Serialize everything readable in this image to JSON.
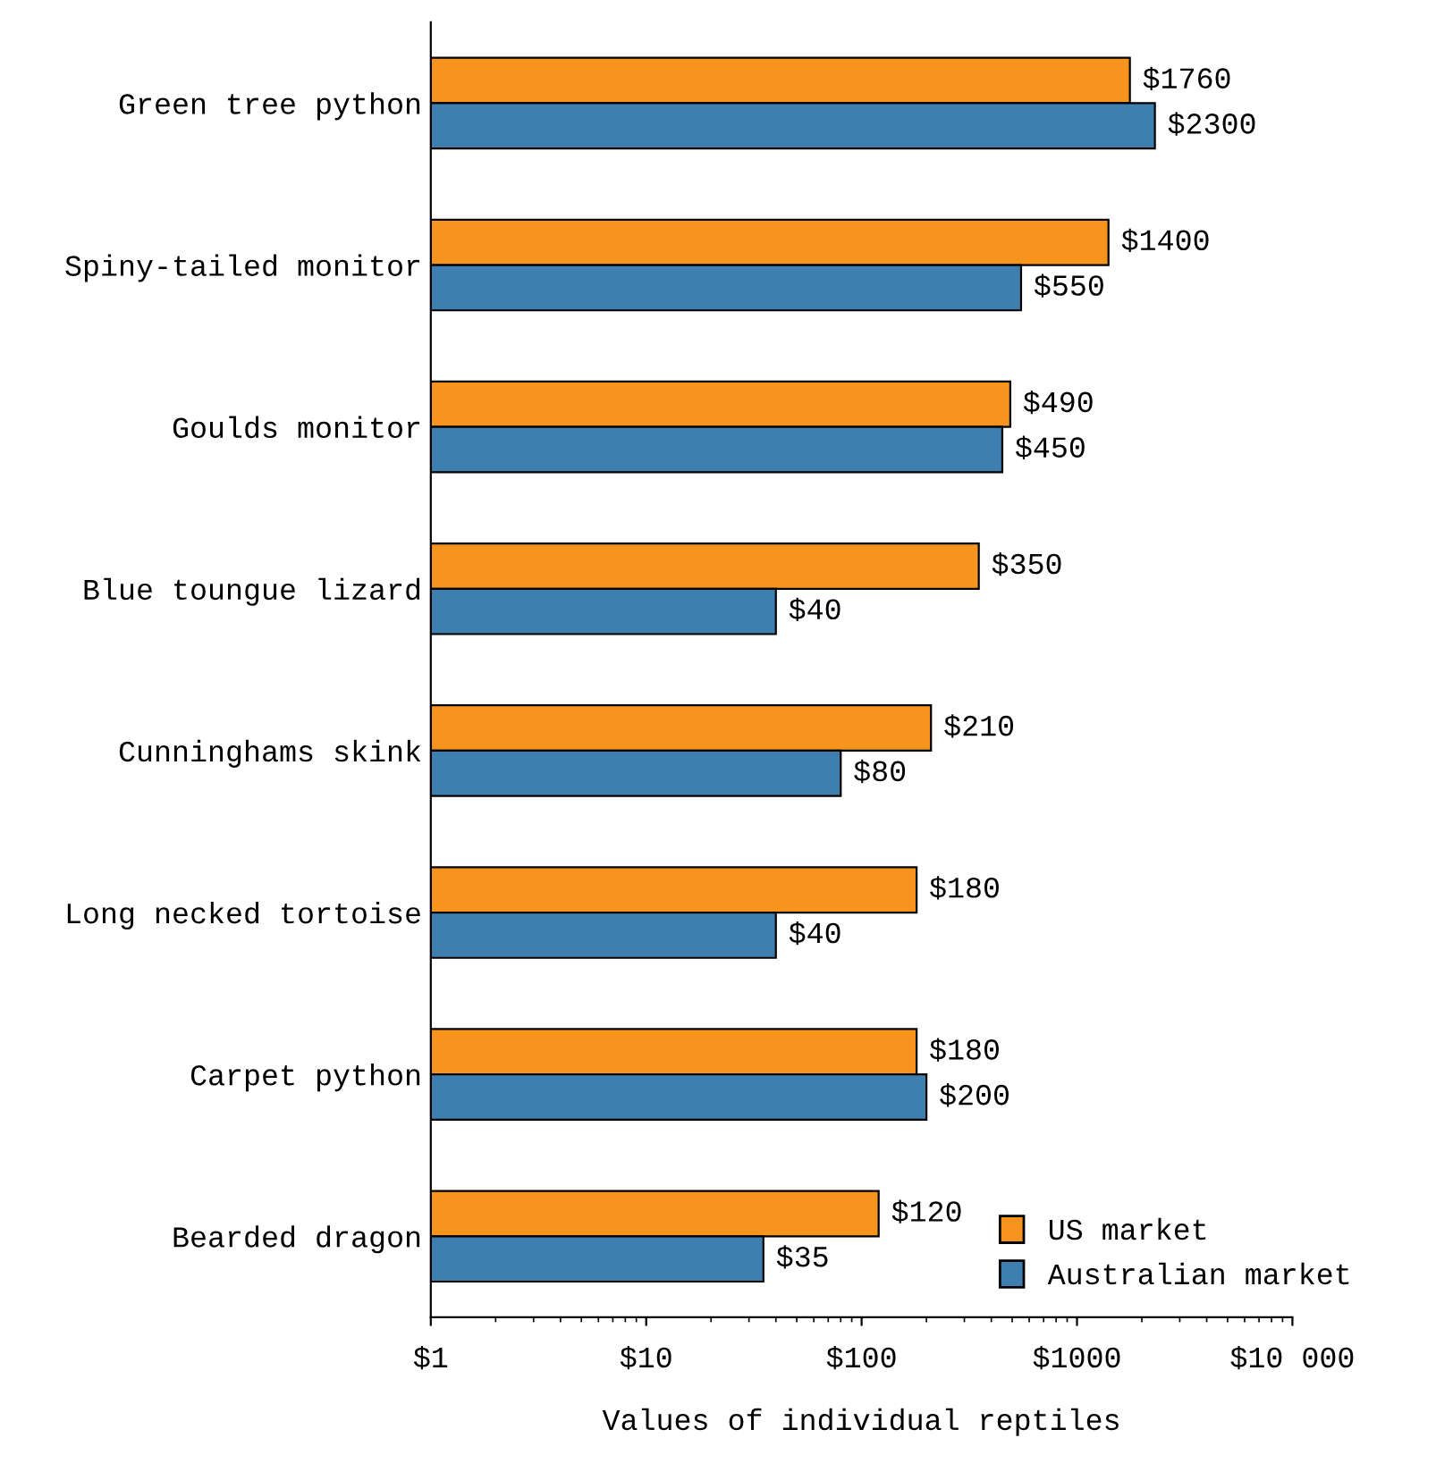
{
  "chart_data": {
    "type": "bar",
    "orientation": "horizontal",
    "xlabel": "Values of individual reptiles",
    "categories": [
      "Green tree python",
      "Spiny-tailed monitor",
      "Goulds monitor",
      "Blue toungue lizard",
      "Cunninghams skink",
      "Long necked tortoise",
      "Carpet python",
      "Bearded dragon"
    ],
    "series": [
      {
        "name": "US market",
        "color": "#f7941d",
        "values": [
          1760,
          1400,
          490,
          350,
          210,
          180,
          180,
          120
        ],
        "value_labels": [
          "$1760",
          "$1400",
          "$490",
          "$350",
          "$210",
          "$180",
          "$180",
          "$120"
        ]
      },
      {
        "name": "Australian market",
        "color": "#3e7fb0",
        "values": [
          2300,
          550,
          450,
          40,
          80,
          40,
          200,
          35
        ],
        "value_labels": [
          "$2300",
          "$550",
          "$450",
          "$40",
          "$80",
          "$40",
          "$200",
          "$35"
        ]
      }
    ],
    "log": "x",
    "xlim": [
      1,
      10000
    ],
    "xticks": [
      {
        "value": 1,
        "label": "$1"
      },
      {
        "value": 10,
        "label": "$10"
      },
      {
        "value": 100,
        "label": "$100"
      },
      {
        "value": 1000,
        "label": "$1000"
      },
      {
        "value": 10000,
        "label": "$10 000"
      }
    ],
    "legend": "bottom right",
    "grid": false
  }
}
